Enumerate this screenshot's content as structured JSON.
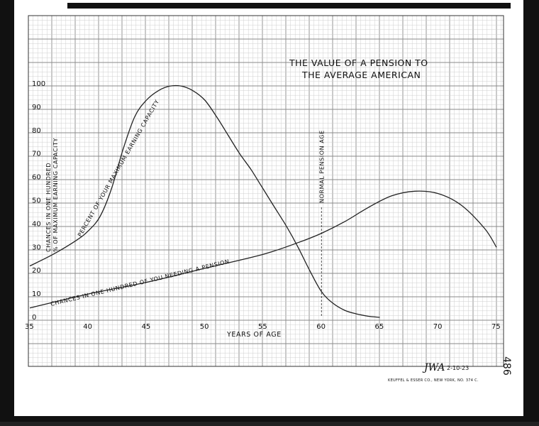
{
  "chart_data": {
    "type": "line",
    "title_lines": [
      "THE VALUE OF A PENSION TO",
      "THE AVERAGE AMERICAN"
    ],
    "xlabel": "YEARS OF AGE",
    "ylabel_lines": [
      "CHANCES IN ONE HUNDRED",
      "% OF MAXIMUM EARNING CAPACITY"
    ],
    "xlim": [
      35,
      75
    ],
    "ylim": [
      0,
      100
    ],
    "x_ticks": [
      35,
      40,
      45,
      50,
      55,
      60,
      65,
      70,
      75
    ],
    "y_ticks": [
      0,
      10,
      20,
      30,
      40,
      50,
      60,
      70,
      80,
      90,
      100
    ],
    "grid": true,
    "series": [
      {
        "name": "PERCENT OF YOUR MAXIMUM EARNING CAPACITY",
        "color": "#222222",
        "points": [
          [
            35,
            22
          ],
          [
            37,
            27
          ],
          [
            39,
            33
          ],
          [
            40,
            37
          ],
          [
            41,
            43
          ],
          [
            42,
            55
          ],
          [
            43,
            72
          ],
          [
            44,
            86
          ],
          [
            45,
            93
          ],
          [
            46,
            97
          ],
          [
            47,
            99
          ],
          [
            48,
            99
          ],
          [
            49,
            97
          ],
          [
            50,
            93
          ],
          [
            51,
            86
          ],
          [
            52,
            78
          ],
          [
            53,
            70
          ],
          [
            54,
            63
          ],
          [
            55,
            55
          ],
          [
            56,
            47
          ],
          [
            57,
            39
          ],
          [
            58,
            30
          ],
          [
            59,
            20
          ],
          [
            60,
            11
          ],
          [
            61,
            6
          ],
          [
            62,
            3
          ],
          [
            63,
            1.5
          ],
          [
            64,
            0.5
          ],
          [
            65,
            0
          ]
        ]
      },
      {
        "name": "CHANCES IN ONE HUNDRED OF YOU NEEDING A PENSION",
        "color": "#222222",
        "points": [
          [
            35,
            4
          ],
          [
            40,
            10
          ],
          [
            45,
            15
          ],
          [
            50,
            21
          ],
          [
            55,
            27
          ],
          [
            58,
            32
          ],
          [
            60,
            36
          ],
          [
            62,
            41
          ],
          [
            64,
            47
          ],
          [
            66,
            52
          ],
          [
            68,
            54
          ],
          [
            70,
            53
          ],
          [
            72,
            48
          ],
          [
            74,
            38
          ],
          [
            75,
            30
          ]
        ]
      }
    ],
    "annotations": [
      {
        "text": "NORMAL PENSION AGE",
        "x": 60,
        "style": "dashed-vertical-line"
      }
    ]
  },
  "footer": {
    "signature": "JWA",
    "date": "2-10-23",
    "maker": "KEUFFEL & ESSER CO., NEW YORK, NO. 374 C.",
    "sheet_number": "486"
  }
}
